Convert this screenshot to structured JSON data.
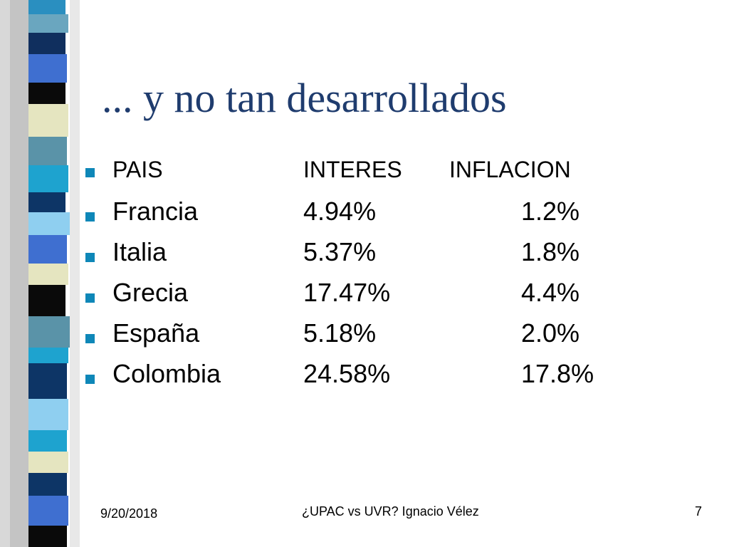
{
  "slide": {
    "title": "... y no tan desarrollados",
    "header": {
      "pais": "PAIS",
      "interes": "INTERES",
      "inflacion": "INFLACION"
    },
    "rows": [
      {
        "pais": "Francia",
        "interes": "4.94%",
        "inflacion": "1.2%"
      },
      {
        "pais": "Italia",
        "interes": "5.37%",
        "inflacion": "1.8%"
      },
      {
        "pais": "Grecia",
        "interes": "17.47%",
        "inflacion": "4.4%"
      },
      {
        "pais": "España",
        "interes": "5.18%",
        "inflacion": "2.0%"
      },
      {
        "pais": "Colombia",
        "interes": "24.58%",
        "inflacion": "17.8%"
      }
    ],
    "footer": {
      "date": "9/20/2018",
      "center": "¿UPAC vs UVR? Ignacio Vélez",
      "page": "7"
    }
  },
  "colors": {
    "title": "#1f3c6e",
    "bullet": "#0e87b8"
  }
}
